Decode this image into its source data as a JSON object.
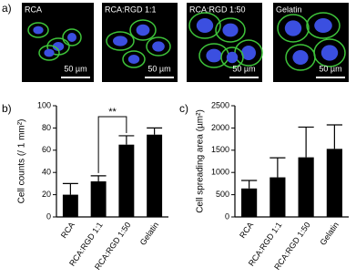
{
  "panel_a": {
    "label": "a)",
    "images": [
      {
        "label": "RCA",
        "scale": "50 µm"
      },
      {
        "label": "RCA:RGD 1:1",
        "scale": "50 µm"
      },
      {
        "label": "RCA:RGD 1:50",
        "scale": "50 µm"
      },
      {
        "label": "Gelatin",
        "scale": "50 µm"
      }
    ]
  },
  "chart_data": [
    {
      "type": "bar",
      "label": "b)",
      "y_label": "Cell counts (/ 1 mm²)",
      "categories": [
        "RCA",
        "RCA:RGD 1:1",
        "RCA:RGD 1:50",
        "Gelatin"
      ],
      "values": [
        20,
        32,
        65,
        74
      ],
      "errors": [
        10,
        5,
        8,
        6
      ],
      "color": "#000000",
      "ylim": [
        0,
        100
      ],
      "yticks": [
        0,
        20,
        40,
        60,
        80,
        100
      ],
      "annotation": "**"
    },
    {
      "type": "bar",
      "label": "c)",
      "y_label": "Cell spreading area (µm²)",
      "categories": [
        "RCA",
        "RCA:RGD 1:1",
        "RCA:RGD 1:50",
        "Gelatin"
      ],
      "values": [
        640,
        890,
        1340,
        1530
      ],
      "errors": [
        180,
        440,
        680,
        540
      ],
      "color": "#000000",
      "ylim": [
        0,
        2500
      ],
      "yticks": [
        0,
        500,
        1000,
        1500,
        2000,
        2500
      ]
    }
  ]
}
